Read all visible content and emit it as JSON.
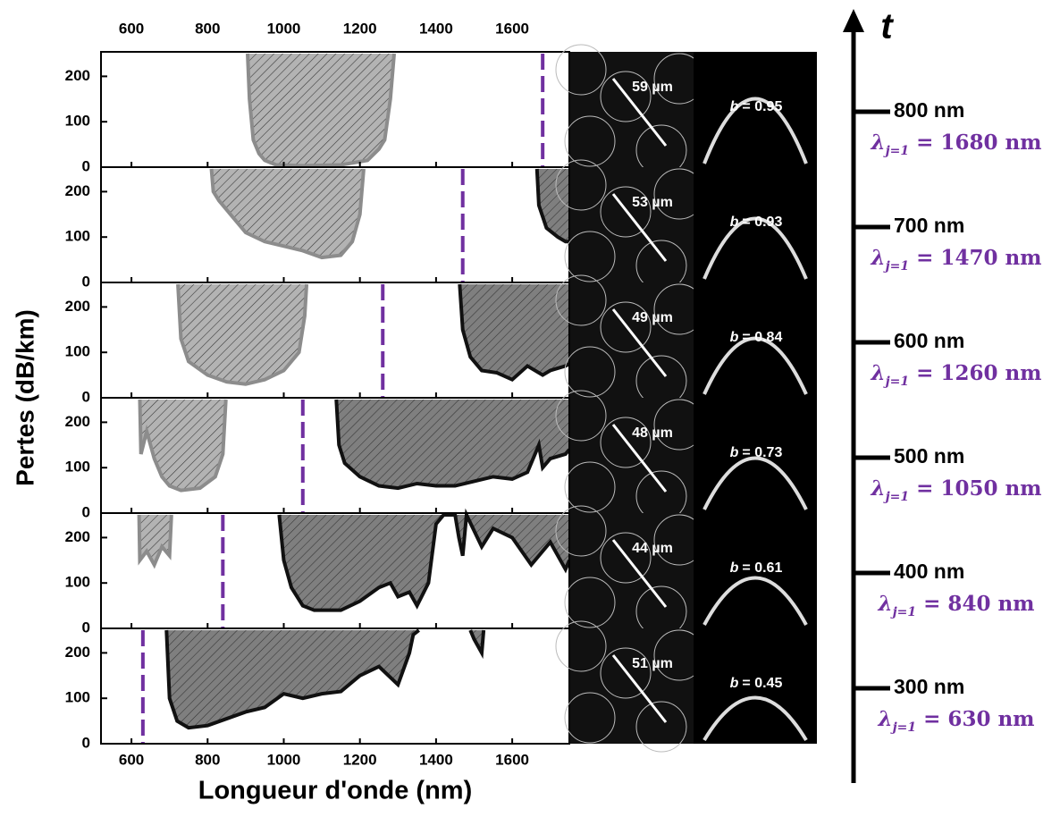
{
  "chart_data": [
    {
      "type": "area",
      "ylabel": "Pertes (dB/km)",
      "xlim": [
        520,
        1750
      ],
      "ylim": [
        0,
        250
      ],
      "xticks": [
        600,
        800,
        1000,
        1200,
        1400,
        1600
      ],
      "yticks": [
        0,
        100,
        200
      ],
      "resonance_nm": 1680,
      "series": [
        {
          "color": "#b3b3b3",
          "edge": "#8c8c8c",
          "x": [
            905,
            910,
            920,
            935,
            950,
            980,
            1050,
            1150,
            1220,
            1250,
            1265,
            1280,
            1290
          ],
          "values": [
            250,
            150,
            60,
            30,
            15,
            5,
            3,
            5,
            15,
            40,
            60,
            150,
            250
          ]
        }
      ],
      "pitch_label": "59 µm",
      "b_symbol": "b",
      "b_value": "= 0.95",
      "thickness_label": "800 nm",
      "lambda_symbol": "λ",
      "lambda_subscript": "j=1",
      "lambda_value": "= 1680 nm"
    },
    {
      "type": "area",
      "xlim": [
        520,
        1750
      ],
      "ylim": [
        0,
        250
      ],
      "xticks": [
        600,
        800,
        1000,
        1200,
        1400,
        1600
      ],
      "yticks": [
        0,
        100,
        200
      ],
      "resonance_nm": 1470,
      "series": [
        {
          "color": "#b3b3b3",
          "edge": "#8c8c8c",
          "x": [
            810,
            815,
            830,
            860,
            900,
            950,
            1000,
            1050,
            1100,
            1150,
            1180,
            1200,
            1210
          ],
          "values": [
            250,
            200,
            180,
            150,
            110,
            90,
            80,
            70,
            55,
            60,
            90,
            150,
            250
          ]
        },
        {
          "color": "#7f7f7f",
          "edge": "#111111",
          "x": [
            1665,
            1670,
            1690,
            1720,
            1740,
            1750
          ],
          "values": [
            250,
            170,
            120,
            100,
            90,
            90
          ]
        }
      ],
      "pitch_label": "53 µm",
      "b_symbol": "b",
      "b_value": "= 0.93",
      "thickness_label": "700 nm",
      "lambda_symbol": "λ",
      "lambda_subscript": "j=1",
      "lambda_value": "= 1470 nm"
    },
    {
      "type": "area",
      "xlim": [
        520,
        1750
      ],
      "ylim": [
        0,
        250
      ],
      "xticks": [
        600,
        800,
        1000,
        1200,
        1400,
        1600
      ],
      "yticks": [
        0,
        100,
        200
      ],
      "resonance_nm": 1260,
      "series": [
        {
          "color": "#b3b3b3",
          "edge": "#8c8c8c",
          "x": [
            722,
            730,
            750,
            800,
            850,
            900,
            950,
            1000,
            1040,
            1055,
            1060
          ],
          "values": [
            250,
            130,
            80,
            50,
            35,
            30,
            40,
            60,
            100,
            180,
            250
          ]
        },
        {
          "color": "#7f7f7f",
          "edge": "#111111",
          "x": [
            1462,
            1470,
            1490,
            1520,
            1560,
            1600,
            1640,
            1680,
            1700,
            1740,
            1750
          ],
          "values": [
            250,
            150,
            90,
            60,
            55,
            40,
            70,
            50,
            60,
            70,
            75
          ]
        }
      ],
      "pitch_label": "49 µm",
      "b_symbol": "b",
      "b_value": "= 0.84",
      "thickness_label": "600 nm",
      "lambda_symbol": "λ",
      "lambda_subscript": "j=1",
      "lambda_value": "= 1260 nm"
    },
    {
      "type": "area",
      "xlim": [
        520,
        1750
      ],
      "ylim": [
        0,
        250
      ],
      "xticks": [
        600,
        800,
        1000,
        1200,
        1400,
        1600
      ],
      "yticks": [
        0,
        100,
        200
      ],
      "resonance_nm": 1050,
      "series": [
        {
          "color": "#b3b3b3",
          "edge": "#8c8c8c",
          "x": [
            622,
            625,
            640,
            660,
            680,
            700,
            730,
            780,
            820,
            840,
            848
          ],
          "values": [
            250,
            130,
            180,
            120,
            80,
            60,
            50,
            55,
            80,
            130,
            250
          ]
        },
        {
          "color": "#7f7f7f",
          "edge": "#111111",
          "x": [
            1138,
            1145,
            1160,
            1200,
            1250,
            1300,
            1350,
            1400,
            1450,
            1500,
            1550,
            1600,
            1640,
            1670,
            1680,
            1700,
            1740,
            1750
          ],
          "values": [
            250,
            150,
            110,
            80,
            60,
            55,
            65,
            60,
            60,
            70,
            80,
            75,
            90,
            150,
            100,
            120,
            130,
            140
          ]
        }
      ],
      "pitch_label": "48 µm",
      "b_symbol": "b",
      "b_value": "= 0.73",
      "thickness_label": "500 nm",
      "lambda_symbol": "λ",
      "lambda_subscript": "j=1",
      "lambda_value": "= 1050 nm"
    },
    {
      "type": "area",
      "xlim": [
        520,
        1750
      ],
      "ylim": [
        0,
        250
      ],
      "xticks": [
        600,
        800,
        1000,
        1200,
        1400,
        1600
      ],
      "yticks": [
        0,
        100,
        200
      ],
      "resonance_nm": 840,
      "series": [
        {
          "color": "#b3b3b3",
          "edge": "#8c8c8c",
          "x": [
            620,
            622,
            640,
            660,
            680,
            700,
            705
          ],
          "values": [
            250,
            150,
            170,
            140,
            180,
            160,
            250
          ]
        },
        {
          "color": "#7f7f7f",
          "edge": "#111111",
          "x": [
            988,
            1000,
            1020,
            1050,
            1080,
            1150,
            1200,
            1250,
            1280,
            1300,
            1330,
            1350,
            1380,
            1400,
            1420,
            1450,
            1460,
            1470,
            1480,
            1520,
            1550,
            1600,
            1650,
            1700,
            1740,
            1750
          ],
          "values": [
            250,
            150,
            90,
            50,
            40,
            40,
            60,
            90,
            100,
            70,
            80,
            50,
            100,
            230,
            250,
            250,
            200,
            160,
            250,
            180,
            220,
            200,
            140,
            190,
            130,
            150
          ]
        }
      ],
      "pitch_label": "44 µm",
      "b_symbol": "b",
      "b_value": "= 0.61",
      "thickness_label": "400 nm",
      "lambda_symbol": "λ",
      "lambda_subscript": "j=1",
      "lambda_value": "= 840 nm"
    },
    {
      "type": "area",
      "xlabel": "Longueur d'onde (nm)",
      "xlim": [
        520,
        1750
      ],
      "ylim": [
        0,
        250
      ],
      "xticks": [
        600,
        800,
        1000,
        1200,
        1400,
        1600
      ],
      "yticks": [
        0,
        100,
        200
      ],
      "resonance_nm": 630,
      "series": [
        {
          "color": "#7f7f7f",
          "edge": "#111111",
          "x": [
            692,
            700,
            720,
            750,
            800,
            850,
            900,
            950,
            1000,
            1050,
            1100,
            1150,
            1200,
            1250,
            1300,
            1330,
            1340,
            1355
          ],
          "values": [
            250,
            100,
            50,
            35,
            40,
            55,
            70,
            80,
            110,
            100,
            110,
            115,
            150,
            170,
            130,
            200,
            240,
            250
          ]
        },
        {
          "color": "#7f7f7f",
          "edge": "#111111",
          "x": [
            1490,
            1500,
            1520,
            1525
          ],
          "values": [
            250,
            230,
            200,
            250
          ]
        }
      ],
      "pitch_label": "51 µm",
      "b_symbol": "b",
      "b_value": "= 0.45",
      "thickness_label": "300 nm",
      "lambda_symbol": "λ",
      "lambda_subscript": "j=1",
      "lambda_value": "= 630 nm"
    }
  ],
  "timeline_label": "t",
  "resonance_color": "#7030a0"
}
